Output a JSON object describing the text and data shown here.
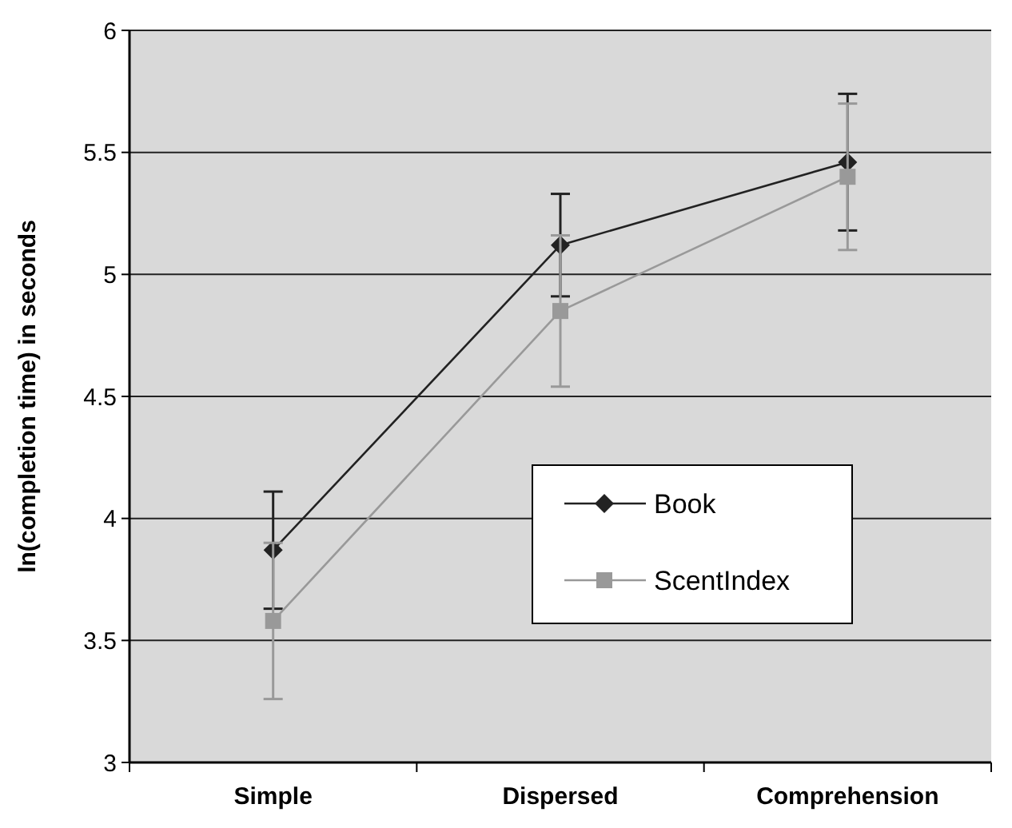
{
  "chart_data": {
    "type": "line",
    "ylabel": "ln(completion time) in seconds",
    "categories": [
      "Simple",
      "Dispersed",
      "Comprehension"
    ],
    "series": [
      {
        "name": "Book",
        "color": "#222222",
        "marker": "diamond",
        "values": [
          3.87,
          5.12,
          5.46
        ],
        "errors": [
          0.24,
          0.21,
          0.28
        ]
      },
      {
        "name": "ScentIndex",
        "color": "#999999",
        "marker": "square",
        "values": [
          3.58,
          4.85,
          5.4
        ],
        "errors": [
          0.32,
          0.31,
          0.3
        ]
      }
    ],
    "ylim": [
      3,
      6
    ],
    "yticks": [
      3,
      3.5,
      4,
      4.5,
      5,
      5.5,
      6
    ],
    "grid": "y",
    "legend": "bottom right"
  }
}
